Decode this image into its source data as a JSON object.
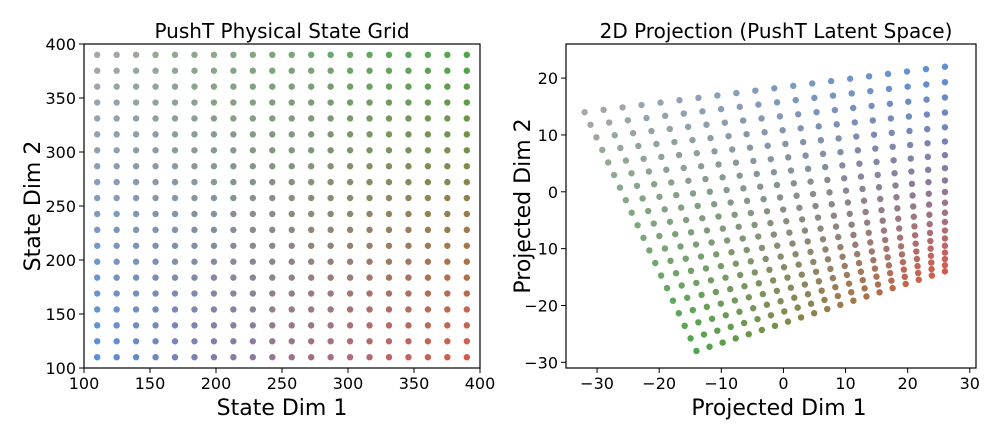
{
  "chart_data": [
    {
      "type": "scatter",
      "title": "PushT Physical State Grid",
      "xlabel": "State Dim 1",
      "ylabel": "State Dim 2",
      "xlim": [
        100,
        400
      ],
      "ylim": [
        100,
        400
      ],
      "xticks": [
        "100",
        "150",
        "200",
        "250",
        "300",
        "350",
        "400"
      ],
      "yticks": [
        "100",
        "150",
        "200",
        "250",
        "300",
        "350",
        "400"
      ],
      "grid": false,
      "color_corners": {
        "low_x_low_y": "#5b8fd6",
        "high_x_low_y": "#d65a4a",
        "low_x_high_y": "#a7a7a7",
        "high_x_high_y": "#4ea64a"
      },
      "grid_values": {
        "x_start": 110,
        "x_end": 390,
        "x_count": 20,
        "y_start": 110,
        "y_end": 390,
        "y_count": 20
      }
    },
    {
      "type": "scatter",
      "title": "2D Projection (PushT Latent Space)",
      "xlabel": "Projected Dim 1",
      "ylabel": "Projected Dim 2",
      "xlim": [
        -35,
        31
      ],
      "ylim": [
        -31,
        26
      ],
      "xticks": [
        "−30",
        "−20",
        "−10",
        "0",
        "10",
        "20",
        "30"
      ],
      "yticks": [
        "−30",
        "−20",
        "−10",
        "0",
        "10",
        "20"
      ],
      "grid": false,
      "color_scheme": "same color mapping as left grid",
      "projected_corners": {
        "low_x_low_y": [
          26,
          22
        ],
        "high_x_low_y": [
          26,
          -14
        ],
        "low_x_high_y": [
          -32,
          14
        ],
        "high_x_high_y": [
          -14,
          -28
        ]
      }
    }
  ]
}
